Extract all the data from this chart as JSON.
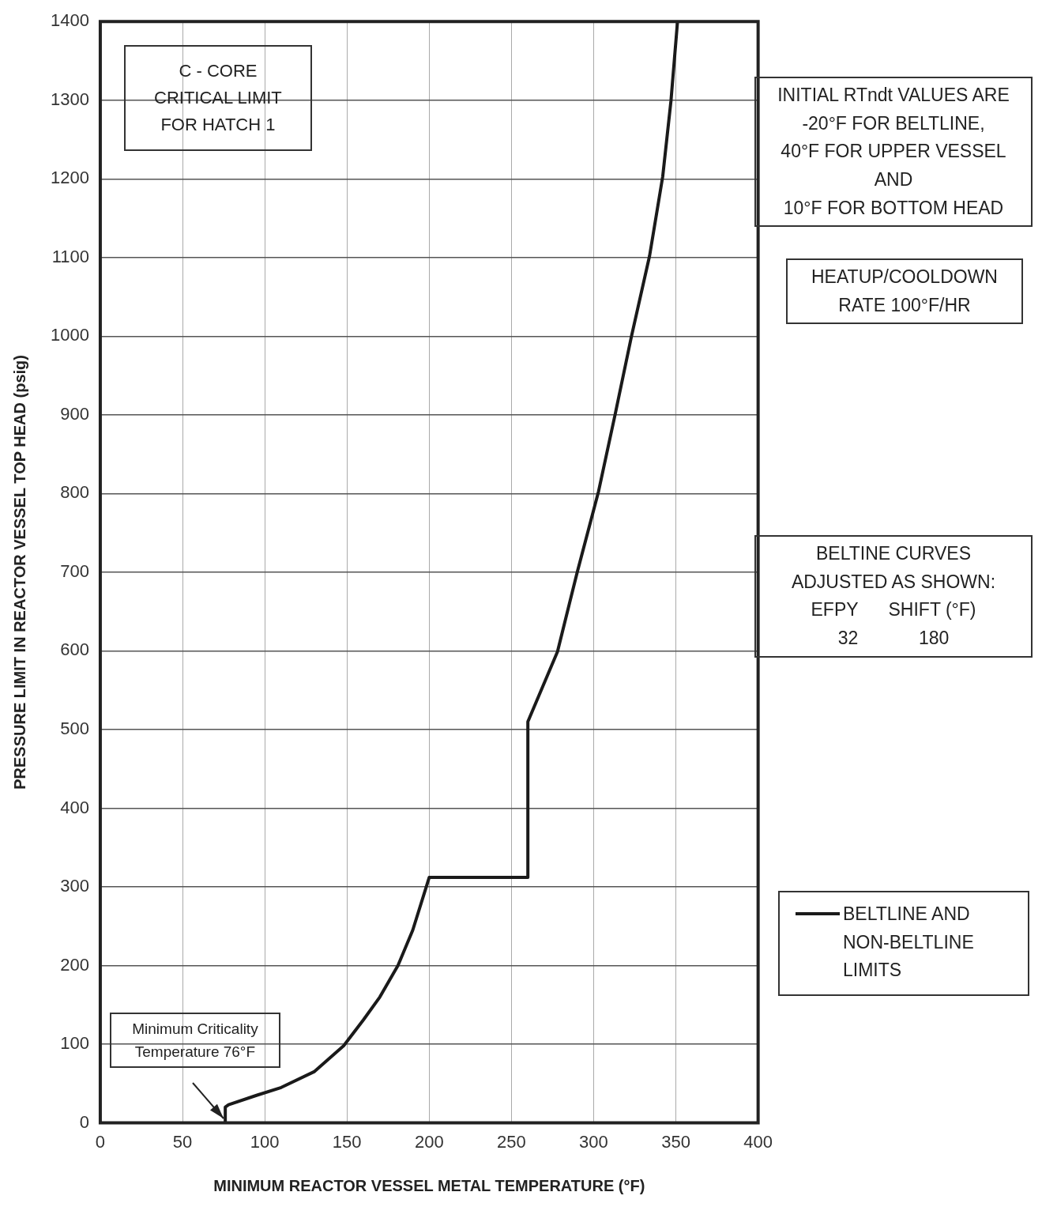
{
  "chart_data": {
    "type": "line",
    "xlabel": "MINIMUM REACTOR VESSEL METAL TEMPERATURE (°F)",
    "ylabel": "PRESSURE LIMIT IN REACTOR VESSEL TOP HEAD (psig)",
    "xlim": [
      0,
      400
    ],
    "xticks": [
      0,
      50,
      100,
      150,
      200,
      250,
      300,
      350,
      400
    ],
    "ylim": [
      0,
      1400
    ],
    "yticks": [
      0,
      100,
      200,
      300,
      400,
      500,
      600,
      700,
      800,
      900,
      1000,
      1100,
      1200,
      1300,
      1400
    ],
    "grid": true,
    "legend": "right",
    "marker": "none",
    "line_style": "solid",
    "series": [
      {
        "name": "BELTLINE AND NON-BELTLINE LIMITS",
        "color": "#1a1a1a",
        "x": [
          76,
          76,
          78,
          95,
          110,
          130,
          148,
          160,
          170,
          181,
          190,
          200,
          260,
          260,
          278,
          290,
          303,
          313,
          323,
          334,
          342,
          347,
          351
        ],
        "values": [
          0,
          20,
          23,
          35,
          45,
          65,
          98,
          131,
          160,
          200,
          245,
          312,
          312,
          510,
          599,
          700,
          803,
          900,
          1000,
          1102,
          1203,
          1299,
          1400
        ]
      }
    ],
    "annotations": [
      "C - CORE\nCRITICAL LIMIT\nFOR HATCH 1",
      "INITIAL RTndt VALUES ARE\n-20°F FOR BELTLINE,\n40°F FOR UPPER VESSEL\nAND\n10°F FOR BOTTOM HEAD",
      "HEATUP/COOLDOWN\nRATE 100°F/HR",
      "BELTINE CURVES\nADJUSTED AS SHOWN:\nEFPY      SHIFT (°F)\n32            180",
      "Minimum Criticality\nTemperature 76°F"
    ]
  }
}
